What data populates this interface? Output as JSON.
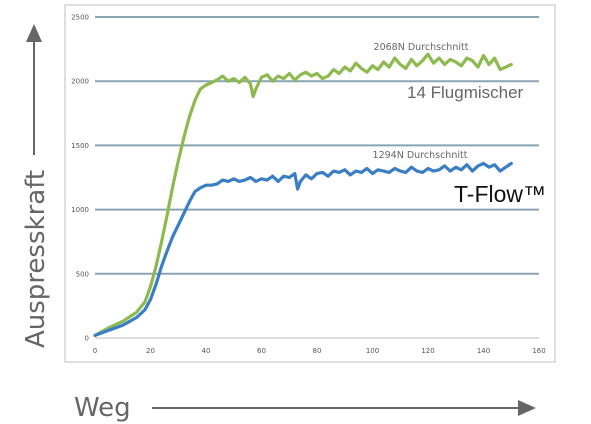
{
  "chart_data": {
    "type": "line",
    "xlabel": "Weg",
    "ylabel": "Auspresskraft",
    "xlim": [
      0,
      160
    ],
    "ylim": [
      0,
      2500
    ],
    "xticks": [
      "0",
      "20",
      "40",
      "60",
      "80",
      "100",
      "120",
      "140",
      "160"
    ],
    "yticks": [
      "0",
      "500",
      "1000",
      "1500",
      "2000",
      "2500"
    ],
    "grid": "horizontal",
    "series": [
      {
        "name": "14 Flugmischer",
        "color": "#8dba4f",
        "annotation": "2068N Durchschnitt",
        "x": [
          0,
          5,
          10,
          15,
          18,
          20,
          22,
          24,
          26,
          28,
          30,
          32,
          34,
          36,
          38,
          40,
          42,
          44,
          46,
          48,
          50,
          52,
          54,
          56,
          57,
          58,
          60,
          62,
          64,
          66,
          68,
          70,
          72,
          74,
          76,
          78,
          80,
          82,
          84,
          86,
          88,
          90,
          92,
          94,
          96,
          98,
          100,
          102,
          104,
          106,
          108,
          110,
          112,
          114,
          116,
          118,
          120,
          122,
          124,
          126,
          128,
          130,
          132,
          134,
          136,
          138,
          140,
          142,
          144,
          146,
          148,
          150
        ],
        "y": [
          20,
          80,
          130,
          200,
          280,
          400,
          560,
          750,
          960,
          1180,
          1380,
          1560,
          1720,
          1850,
          1940,
          1970,
          1990,
          2010,
          2040,
          2000,
          2020,
          1990,
          2030,
          1980,
          1880,
          1940,
          2030,
          2050,
          2000,
          2040,
          2020,
          2060,
          2010,
          2050,
          2070,
          2040,
          2060,
          2020,
          2040,
          2090,
          2060,
          2110,
          2080,
          2140,
          2100,
          2070,
          2120,
          2090,
          2150,
          2110,
          2180,
          2130,
          2100,
          2170,
          2120,
          2160,
          2210,
          2140,
          2180,
          2130,
          2170,
          2150,
          2120,
          2180,
          2160,
          2110,
          2200,
          2130,
          2180,
          2090,
          2110,
          2130
        ]
      },
      {
        "name": "T-Flow™",
        "color": "#3a7fc4",
        "annotation": "1294N Durchschnitt",
        "x": [
          0,
          5,
          10,
          15,
          18,
          20,
          22,
          24,
          26,
          28,
          30,
          32,
          34,
          36,
          38,
          40,
          42,
          44,
          46,
          48,
          50,
          52,
          54,
          56,
          58,
          60,
          62,
          64,
          66,
          68,
          70,
          72,
          73,
          74,
          76,
          78,
          80,
          82,
          84,
          86,
          88,
          90,
          92,
          94,
          96,
          98,
          100,
          102,
          104,
          106,
          108,
          110,
          112,
          114,
          116,
          118,
          120,
          122,
          124,
          126,
          128,
          130,
          132,
          134,
          136,
          138,
          140,
          142,
          144,
          146,
          148,
          150
        ],
        "y": [
          20,
          60,
          100,
          160,
          220,
          300,
          420,
          560,
          680,
          790,
          880,
          970,
          1060,
          1140,
          1170,
          1190,
          1190,
          1200,
          1230,
          1220,
          1240,
          1220,
          1230,
          1250,
          1220,
          1240,
          1230,
          1260,
          1220,
          1260,
          1250,
          1280,
          1160,
          1220,
          1270,
          1240,
          1280,
          1290,
          1260,
          1300,
          1290,
          1310,
          1270,
          1300,
          1290,
          1320,
          1280,
          1310,
          1300,
          1290,
          1320,
          1300,
          1290,
          1330,
          1300,
          1290,
          1320,
          1300,
          1310,
          1340,
          1300,
          1330,
          1310,
          1350,
          1300,
          1340,
          1360,
          1330,
          1350,
          1300,
          1330,
          1360
        ]
      }
    ]
  }
}
